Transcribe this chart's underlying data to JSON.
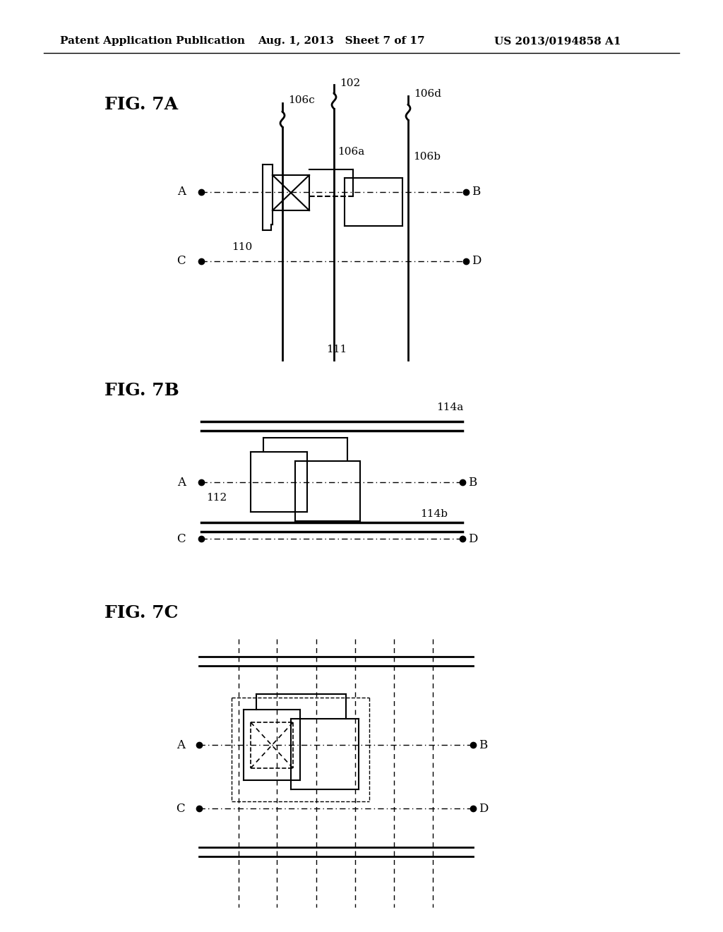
{
  "header_left": "Patent Application Publication",
  "header_mid": "Aug. 1, 2013   Sheet 7 of 17",
  "header_right": "US 2013/0194858 A1",
  "background_color": "#ffffff",
  "fig7a_label": "FIG. 7A",
  "fig7b_label": "FIG. 7B",
  "fig7c_label": "FIG. 7C"
}
